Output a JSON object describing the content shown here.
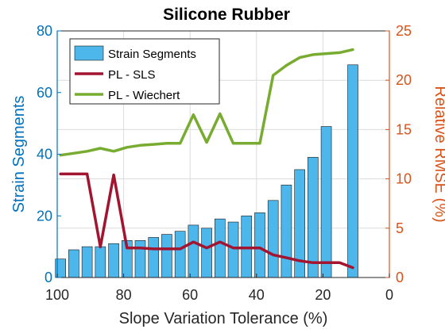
{
  "chart_data": {
    "type": "bar",
    "title": "Silicone Rubber",
    "xlabel": "Slope Variation Tolerance (%)",
    "xlim": [
      100,
      0
    ],
    "x_reversed": true,
    "xticks": [
      100,
      80,
      60,
      40,
      20,
      0
    ],
    "y_left": {
      "label": "Strain Segments",
      "lim": [
        0,
        80
      ],
      "ticks": [
        0,
        20,
        40,
        60,
        80
      ],
      "color": "#0072bd"
    },
    "y_right": {
      "label": "Relative RMSE (%)",
      "lim": [
        0,
        25
      ],
      "ticks": [
        0,
        5,
        10,
        15,
        20,
        25
      ],
      "color": "#d95319"
    },
    "x": [
      99,
      95,
      91,
      87,
      83,
      79,
      75,
      71,
      67,
      63,
      59,
      55,
      51,
      47,
      43,
      39,
      35,
      31,
      27,
      23,
      19,
      15,
      11
    ],
    "bars": {
      "name": "Strain Segments",
      "axis": "left",
      "color": "#4db6ea",
      "values": [
        6,
        9,
        10,
        10,
        11,
        12,
        12,
        13,
        14,
        15,
        17,
        16,
        19,
        18,
        20,
        21,
        25,
        30,
        35,
        39,
        49,
        69
      ]
    },
    "bars_x": [
      99,
      95,
      91,
      87,
      83,
      79,
      75,
      71,
      67,
      63,
      59,
      55,
      51,
      47,
      43,
      39,
      35,
      31,
      27,
      23,
      19,
      11
    ],
    "series": [
      {
        "name": "PL - SLS",
        "axis": "right",
        "color": "#a2142f",
        "x": [
          99,
          95,
          91,
          87,
          83,
          79,
          75,
          71,
          67,
          63,
          59,
          55,
          51,
          47,
          43,
          39,
          35,
          31,
          27,
          23,
          19,
          15,
          11
        ],
        "values": [
          10.5,
          10.5,
          10.5,
          3.1,
          10.4,
          3.0,
          3.0,
          2.9,
          2.9,
          2.9,
          3.6,
          3.0,
          3.6,
          3.0,
          3.0,
          3.0,
          2.3,
          2.0,
          1.7,
          1.5,
          1.5,
          1.5,
          1.0
        ]
      },
      {
        "name": "PL - Wiechert",
        "axis": "right",
        "color": "#77ac30",
        "x": [
          99,
          95,
          91,
          87,
          83,
          79,
          75,
          71,
          67,
          63,
          59,
          55,
          51,
          47,
          43,
          39,
          35,
          31,
          27,
          23,
          19,
          15,
          11
        ],
        "values": [
          12.4,
          12.6,
          12.8,
          13.1,
          12.8,
          13.2,
          13.4,
          13.5,
          13.6,
          13.6,
          16.5,
          13.7,
          16.6,
          13.6,
          13.6,
          13.6,
          20.5,
          21.5,
          22.3,
          22.6,
          22.7,
          22.8,
          23.1
        ]
      }
    ],
    "legend": {
      "position": "top-left",
      "entries": [
        "Strain Segments",
        "PL - SLS",
        "PL - Wiechert"
      ]
    },
    "grid": true
  }
}
